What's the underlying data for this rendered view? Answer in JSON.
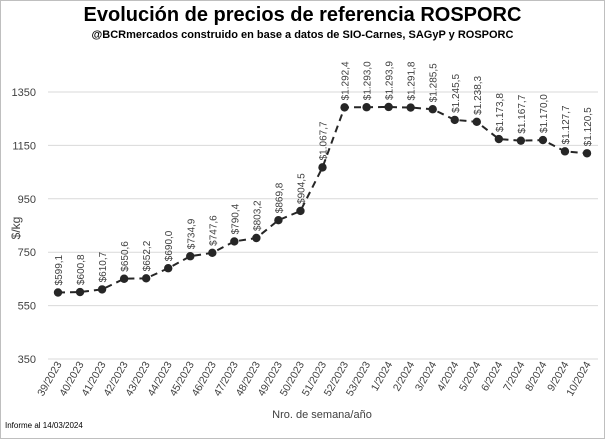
{
  "chart_data": {
    "type": "line",
    "title": "Evolución de precios de referencia ROSPORC",
    "subtitle": "@BCRmercados construido en base a datos de SIO-Carnes, SAGyP y ROSPORC",
    "xlabel": "Nro. de semana/año",
    "ylabel": "$/kg",
    "ylim": [
      350,
      1350
    ],
    "yticks": [
      350,
      550,
      750,
      950,
      1150,
      1350
    ],
    "grid": true,
    "categories": [
      "39/2023",
      "40/2023",
      "41/2023",
      "42/2023",
      "43/2023",
      "44/2023",
      "45/2023",
      "46/2023",
      "47/2023",
      "48/2023",
      "49/2023",
      "50/2023",
      "51/2023",
      "52/2023",
      "53/2023",
      "1/2024",
      "2/2024",
      "3/2024",
      "4/2024",
      "5/2024",
      "6/2024",
      "7/2024",
      "8/2024",
      "9/2024",
      "10/2024"
    ],
    "values": [
      599.1,
      600.8,
      610.7,
      650.6,
      652.2,
      690.0,
      734.9,
      747.6,
      790.4,
      803.2,
      869.8,
      904.5,
      1067.7,
      1292.4,
      1293.0,
      1293.9,
      1291.8,
      1285.5,
      1245.5,
      1238.3,
      1173.8,
      1167.7,
      1170.0,
      1127.7,
      1120.5
    ],
    "data_labels": [
      "$599,1",
      "$600,8",
      "$610,7",
      "$650,6",
      "$652,2",
      "$690,0",
      "$734,9",
      "$747,6",
      "$790,4",
      "$803,2",
      "$869,8",
      "$904,5",
      "$1.067,7",
      "$1.292,4",
      "$1.293,0",
      "$1.293,9",
      "$1.291,8",
      "$1.285,5",
      "$1.245,5",
      "$1.238,3",
      "$1.173,8",
      "$1.167,7",
      "$1.170,0",
      "$1.127,7",
      "$1.120,5"
    ],
    "series_color": "#262626"
  },
  "footer": "Informe al 14/03/2024"
}
